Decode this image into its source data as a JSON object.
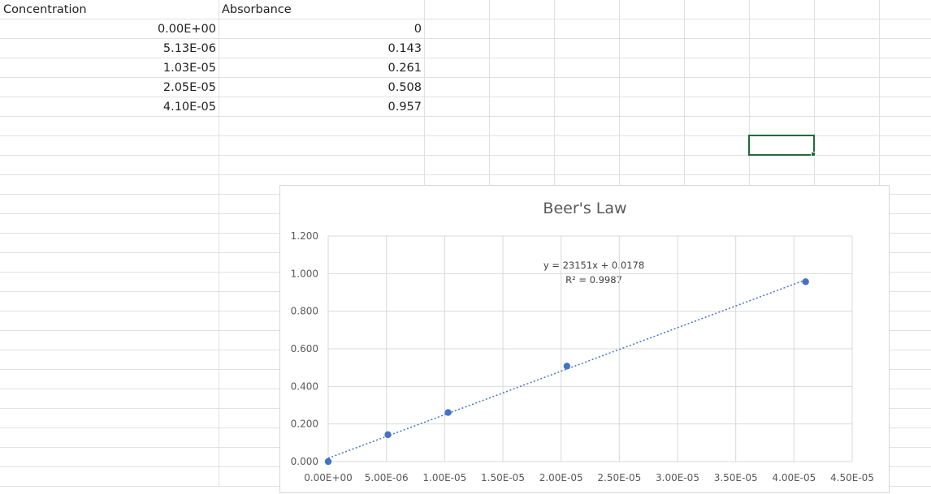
{
  "sheet": {
    "headers": [
      "Concentration",
      "Absorbance"
    ],
    "rows": [
      {
        "concentration": "0.00E+00",
        "absorbance": "0"
      },
      {
        "concentration": "5.13E-06",
        "absorbance": "0.143"
      },
      {
        "concentration": "1.03E-05",
        "absorbance": "0.261"
      },
      {
        "concentration": "2.05E-05",
        "absorbance": "0.508"
      },
      {
        "concentration": "4.10E-05",
        "absorbance": "0.957"
      }
    ]
  },
  "chart_data": {
    "type": "scatter",
    "title": "Beer's Law",
    "xlabel": "",
    "ylabel": "",
    "xlim": [
      0,
      4.5e-05
    ],
    "ylim": [
      0,
      1.2
    ],
    "x_ticks": [
      0,
      5e-06,
      1e-05,
      1.5e-05,
      2e-05,
      2.5e-05,
      3e-05,
      3.5e-05,
      4e-05,
      4.5e-05
    ],
    "x_tick_labels": [
      "0.00E+00",
      "5.00E-06",
      "1.00E-05",
      "1.50E-05",
      "2.00E-05",
      "2.50E-05",
      "3.00E-05",
      "3.50E-05",
      "4.00E-05",
      "4.50E-05"
    ],
    "y_ticks": [
      0,
      0.2,
      0.4,
      0.6,
      0.8,
      1.0,
      1.2
    ],
    "y_tick_labels": [
      "0.000",
      "0.200",
      "0.400",
      "0.600",
      "0.800",
      "1.000",
      "1.200"
    ],
    "grid": true,
    "series": [
      {
        "x": [
          0,
          5.13e-06,
          1.03e-05,
          2.05e-05,
          4.1e-05
        ],
        "y": [
          0,
          0.143,
          0.261,
          0.508,
          0.957
        ],
        "color": "#4472c4"
      }
    ],
    "trendline": {
      "type": "linear",
      "slope": 23151,
      "intercept": 0.0178,
      "color": "#4472c4",
      "equation_label": "y = 23151x + 0.0178",
      "r2_label": "R² = 0.9987"
    }
  },
  "colors": {
    "gridline": "#e1e1e1",
    "chart_gridline": "#d9d9d9",
    "selection": "#1e6b3a",
    "marker": "#4472c4"
  }
}
